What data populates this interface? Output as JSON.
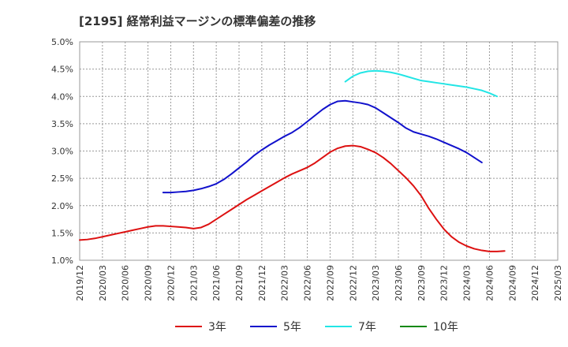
{
  "chart_data": {
    "type": "line",
    "title": "[2195]  経常利益マージンの標準偏差の推移",
    "xlabel": "",
    "ylabel": "",
    "ylim": [
      1.0,
      5.0
    ],
    "y_ticks": [
      "5.0%",
      "4.5%",
      "4.0%",
      "3.5%",
      "3.0%",
      "2.5%",
      "2.0%",
      "1.5%",
      "1.0%"
    ],
    "y_tick_values": [
      5.0,
      4.5,
      4.0,
      3.5,
      3.0,
      2.5,
      2.0,
      1.5,
      1.0
    ],
    "x_ticks": [
      "2019/12",
      "2020/03",
      "2020/06",
      "2020/09",
      "2020/12",
      "2021/03",
      "2021/06",
      "2021/09",
      "2021/12",
      "2022/03",
      "2022/06",
      "2022/09",
      "2022/12",
      "2023/03",
      "2023/06",
      "2023/09",
      "2023/12",
      "2024/03",
      "2024/06",
      "2024/09",
      "2024/12",
      "2025/03"
    ],
    "grid": true,
    "legend_position": "bottom",
    "colors": {
      "3年": "#dd1111",
      "5年": "#1111cc",
      "7年": "#22e5e5",
      "10年": "#118811"
    },
    "series": [
      {
        "name": "3年",
        "color": "#dd1111",
        "start_index": 0,
        "values": [
          1.37,
          1.38,
          1.4,
          1.43,
          1.46,
          1.49,
          1.52,
          1.55,
          1.58,
          1.61,
          1.63,
          1.63,
          1.62,
          1.61,
          1.6,
          1.58,
          1.6,
          1.66,
          1.75,
          1.84,
          1.93,
          2.02,
          2.11,
          2.19,
          2.27,
          2.35,
          2.43,
          2.51,
          2.58,
          2.64,
          2.7,
          2.78,
          2.88,
          2.98,
          3.05,
          3.09,
          3.1,
          3.08,
          3.03,
          2.97,
          2.88,
          2.77,
          2.64,
          2.51,
          2.36,
          2.18,
          1.95,
          1.75,
          1.57,
          1.43,
          1.33,
          1.26,
          1.21,
          1.18,
          1.16,
          1.16,
          1.17
        ]
      },
      {
        "name": "5年",
        "color": "#1111cc",
        "start_index": 11,
        "values": [
          2.24,
          2.24,
          2.25,
          2.26,
          2.28,
          2.31,
          2.35,
          2.4,
          2.48,
          2.58,
          2.69,
          2.8,
          2.92,
          3.02,
          3.11,
          3.19,
          3.27,
          3.34,
          3.43,
          3.54,
          3.65,
          3.76,
          3.85,
          3.91,
          3.92,
          3.9,
          3.88,
          3.85,
          3.79,
          3.7,
          3.61,
          3.52,
          3.42,
          3.35,
          3.31,
          3.27,
          3.22,
          3.16,
          3.1,
          3.04,
          2.97,
          2.88,
          2.79
        ]
      },
      {
        "name": "7年",
        "color": "#22e5e5",
        "start_index": 35,
        "values": [
          4.27,
          4.37,
          4.43,
          4.46,
          4.47,
          4.46,
          4.44,
          4.41,
          4.37,
          4.33,
          4.29,
          4.27,
          4.25,
          4.23,
          4.21,
          4.19,
          4.17,
          4.14,
          4.11,
          4.06,
          4.0
        ]
      },
      {
        "name": "10年",
        "color": "#118811",
        "start_index": 0,
        "values": []
      }
    ]
  }
}
